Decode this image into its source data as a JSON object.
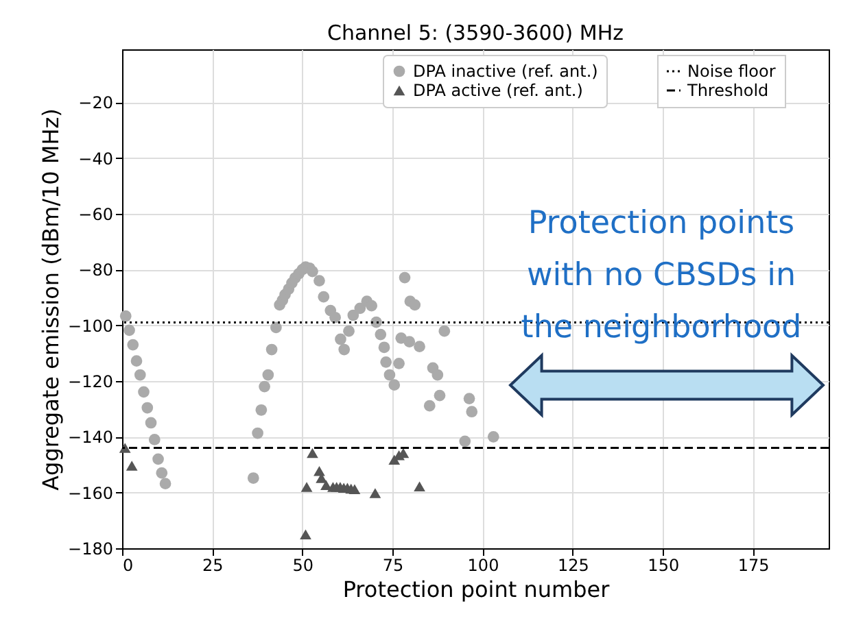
{
  "chart_data": {
    "type": "scatter",
    "title": "Channel 5: (3590-3600) MHz",
    "xlabel": "Protection point number",
    "ylabel": "Aggregate emission (dBm/10 MHz)",
    "xlim": [
      0,
      196
    ],
    "xticks": [
      0,
      25,
      50,
      75,
      100,
      125,
      150,
      175
    ],
    "ylim": [
      -180,
      -1
    ],
    "yticks": [
      -180,
      -160,
      -140,
      -120,
      -100,
      -80,
      -60,
      -40,
      -20
    ],
    "grid": true,
    "legend": "top right",
    "series": [
      {
        "name": "DPA inactive (ref. ant.)",
        "color": "#aaaaaa",
        "marker": "circle",
        "x": [
          1,
          2,
          3,
          4,
          5,
          6,
          7,
          8,
          9,
          10,
          11,
          12,
          36.4,
          37.6,
          38.6,
          39.5,
          40.5,
          41.5,
          42.7,
          43.7,
          44.5,
          45.2,
          46.2,
          47.1,
          48,
          49,
          50,
          50.9,
          52,
          52.8,
          54.7,
          55.9,
          57.8,
          59.1,
          60.6,
          61.6,
          62.9,
          64.1,
          66,
          67.9,
          69.2,
          70.5,
          71.7,
          72.7,
          73.2,
          74.2,
          75.5,
          76.8,
          77.4,
          78.4,
          79.7,
          79.9,
          81.2,
          82.5,
          85.3,
          86.2,
          87.5,
          88.1,
          89.4,
          95.1,
          96.3,
          97,
          103
        ],
        "values": [
          -96.7,
          -101.8,
          -107,
          -112.8,
          -117.8,
          -123.9,
          -129.6,
          -135,
          -141,
          -148,
          -153,
          -156.8,
          -154.8,
          -138.7,
          -130.4,
          -122,
          -117.8,
          -108.7,
          -100.8,
          -92.7,
          -91,
          -89,
          -87,
          -84.8,
          -83,
          -81.5,
          -80,
          -79.1,
          -79.5,
          -80.7,
          -84,
          -89.8,
          -94.7,
          -97.2,
          -105,
          -108.7,
          -102.1,
          -96.4,
          -93.9,
          -91.4,
          -93,
          -98.9,
          -103.3,
          -107.9,
          -113.2,
          -117.8,
          -121.4,
          -113.7,
          -104.6,
          -82.9,
          -105.9,
          -91.4,
          -92.7,
          -107.6,
          -128.9,
          -115.3,
          -117.8,
          -125.2,
          -102.1,
          -141.6,
          -126.3,
          -131,
          -140
        ]
      },
      {
        "name": "DPA active (ref. ant.)",
        "color": "#555555",
        "marker": "triangle",
        "x": [
          0.8,
          2.7,
          50.9,
          51.2,
          52.8,
          54.7,
          55.3,
          56.6,
          58.5,
          59.5,
          60.5,
          61.5,
          62.5,
          63.5,
          64.5,
          70.2,
          75.5,
          76.8,
          78,
          82.5
        ],
        "values": [
          -144,
          -150.4,
          -175,
          -158,
          -145.8,
          -152.3,
          -154.8,
          -157.3,
          -158,
          -158,
          -158,
          -158.3,
          -158.3,
          -158.6,
          -158.8,
          -160.2,
          -148.2,
          -146.6,
          -145.8,
          -157.8
        ]
      }
    ],
    "ref_lines": [
      {
        "axis": "y",
        "value": -99,
        "label": "Noise floor",
        "color": "#000000",
        "line_style": "dotted"
      },
      {
        "axis": "y",
        "value": -144,
        "label": "Threshold",
        "color": "#000000",
        "line_style": "dashed"
      }
    ],
    "annotations": [
      "Protection points\nwith no CBSDs in\nthe neighborhood"
    ]
  }
}
